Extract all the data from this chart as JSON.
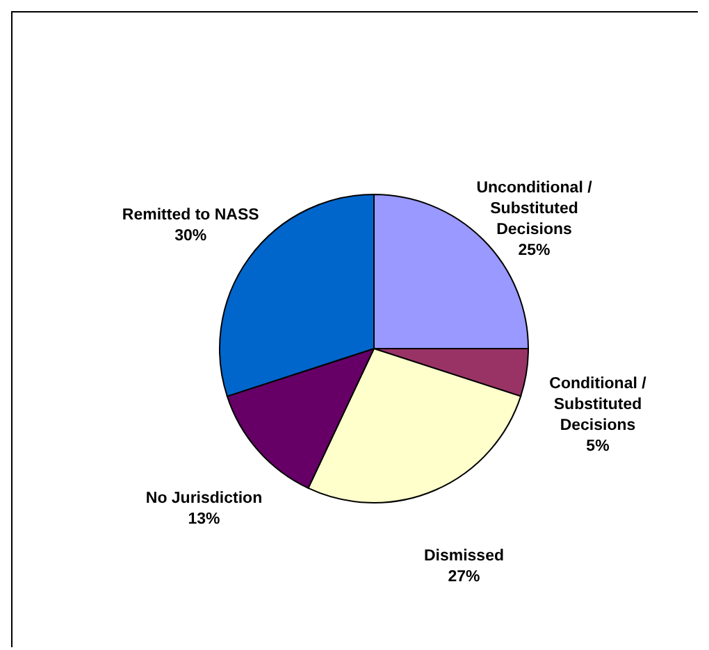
{
  "chart_data": {
    "type": "pie",
    "categories": [
      "Unconditional / Substituted Decisions",
      "Conditional / Substituted Decisions",
      "Dismissed",
      "No Jurisdiction",
      "Remitted to NASS"
    ],
    "values": [
      25,
      5,
      27,
      13,
      30
    ],
    "colors": [
      "#9999ff",
      "#993366",
      "#ffffcc",
      "#660066",
      "#0066cc"
    ],
    "value_labels": [
      "25%",
      "5%",
      "27%",
      "13%",
      "30%"
    ]
  }
}
